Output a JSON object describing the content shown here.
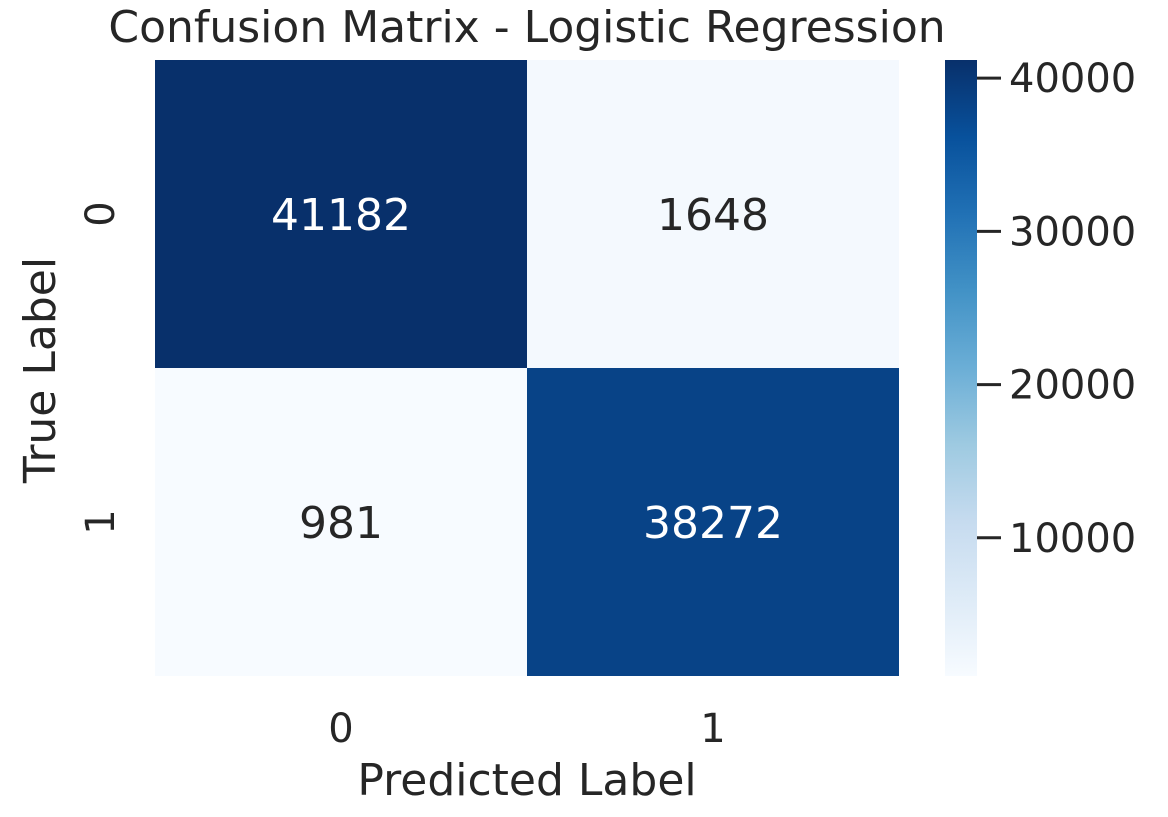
{
  "chart_data": {
    "type": "heatmap",
    "title": "Confusion Matrix - Logistic Regression",
    "xlabel": "Predicted Label",
    "ylabel": "True Label",
    "x_categories": [
      "0",
      "1"
    ],
    "y_categories": [
      "0",
      "1"
    ],
    "values": [
      [
        41182,
        1648
      ],
      [
        981,
        38272
      ]
    ],
    "colorbar": {
      "range": [
        981,
        41182
      ],
      "ticks": [
        10000,
        20000,
        30000,
        40000
      ],
      "colormap": "Blues",
      "low_color": "#f7fbff",
      "high_color": "#08306b"
    },
    "grid": false,
    "legend": "colorbar-right"
  }
}
